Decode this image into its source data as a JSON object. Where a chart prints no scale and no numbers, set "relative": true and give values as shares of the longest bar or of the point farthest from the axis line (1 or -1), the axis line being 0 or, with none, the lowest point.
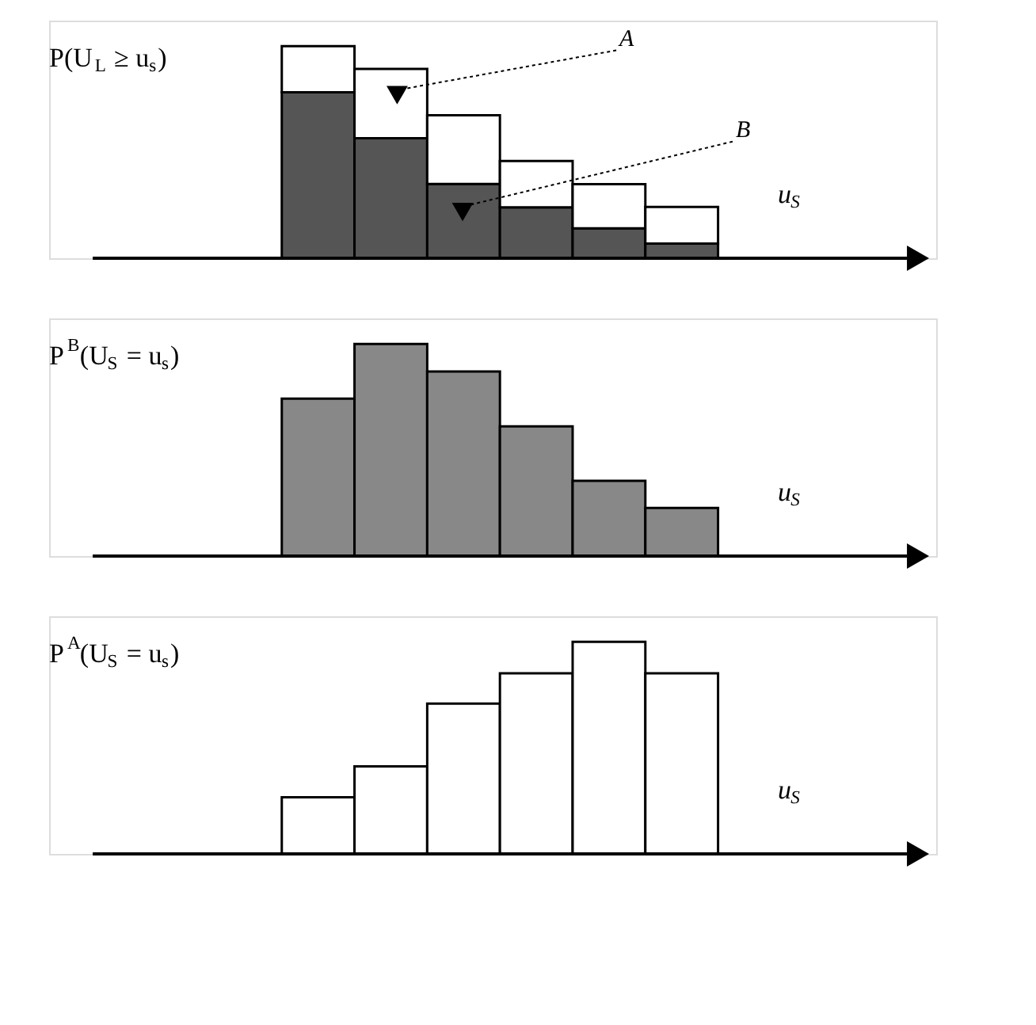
{
  "chart_data": [
    {
      "type": "bar",
      "relative": true,
      "stacked": true,
      "ylabel": "P(U$_{L}$ ≥ u$_{s}$)",
      "xlabel": "u$_{S}$",
      "categories": [
        null,
        null,
        null,
        null,
        null,
        null
      ],
      "series": [
        {
          "color": "#555555",
          "values": [
            0.782,
            0.566,
            0.35,
            0.24,
            0.141,
            0.069
          ]
        },
        {
          "color": "#ffffff",
          "values": [
            0.218,
            0.326,
            0.324,
            0.218,
            0.208,
            0.173
          ]
        }
      ],
      "annotations": [
        "A",
        "B"
      ]
    },
    {
      "type": "bar",
      "relative": true,
      "ylabel": "P$^{B}$(U$_{S}$ = u$_{s}$)",
      "xlabel": "u$_{S}$",
      "categories": [
        null,
        null,
        null,
        null,
        null,
        null
      ],
      "series": [
        {
          "color": "#888888",
          "values": [
            0.742,
            1,
            0.87,
            0.611,
            0.355,
            0.227
          ]
        }
      ]
    },
    {
      "type": "bar",
      "relative": true,
      "ylabel": "P$^{A}$(U$_{S}$ = u$_{s}$)",
      "xlabel": "u$_{S}$",
      "categories": [
        null,
        null,
        null,
        null,
        null,
        null
      ],
      "series": [
        {
          "color": "#ffffff",
          "values": [
            0.267,
            0.413,
            0.708,
            0.851,
            1,
            0.851
          ]
        }
      ]
    }
  ]
}
